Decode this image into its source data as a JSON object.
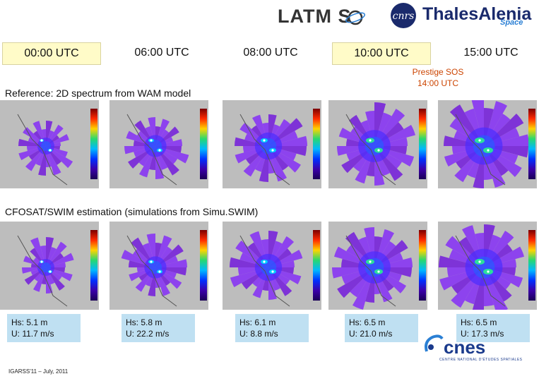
{
  "logos": {
    "latmos": "LATM S",
    "cnrs": "cnrs",
    "thales_main": "ThalesAlenia",
    "thales_sub": "Space",
    "cnes": "cnes",
    "cnes_sub": "CENTRE NATIONAL D'ÉTUDES SPATIALES"
  },
  "times": [
    "00:00 UTC",
    "06:00 UTC",
    "08:00 UTC",
    "10:00 UTC",
    "15:00 UTC"
  ],
  "prestige": {
    "line1": "Prestige SOS",
    "line2": "14:00 UTC"
  },
  "sections": {
    "reference": "Reference: 2D spectrum from WAM model",
    "cfosat": "CFOSAT/SWIM estimation (simulations from Simu.SWIM)"
  },
  "stats": [
    {
      "hs": "Hs: 5.1 m",
      "u": "U: 11.7 m/s"
    },
    {
      "hs": "Hs: 5.8 m",
      "u": "U: 22.2 m/s"
    },
    {
      "hs": "Hs: 6.1 m",
      "u": "U: 8.8 m/s"
    },
    {
      "hs": "Hs: 6.5 m",
      "u": "U: 21.0 m/s"
    },
    {
      "hs": "Hs: 6.5 m",
      "u": "U: 17.3 m/s"
    }
  ],
  "footer": "IGARSS'11 – July, 2011",
  "colors": {
    "time_box": "#fffbc8",
    "stat_box": "#bfe0f2",
    "prestige": "#cc4400"
  }
}
